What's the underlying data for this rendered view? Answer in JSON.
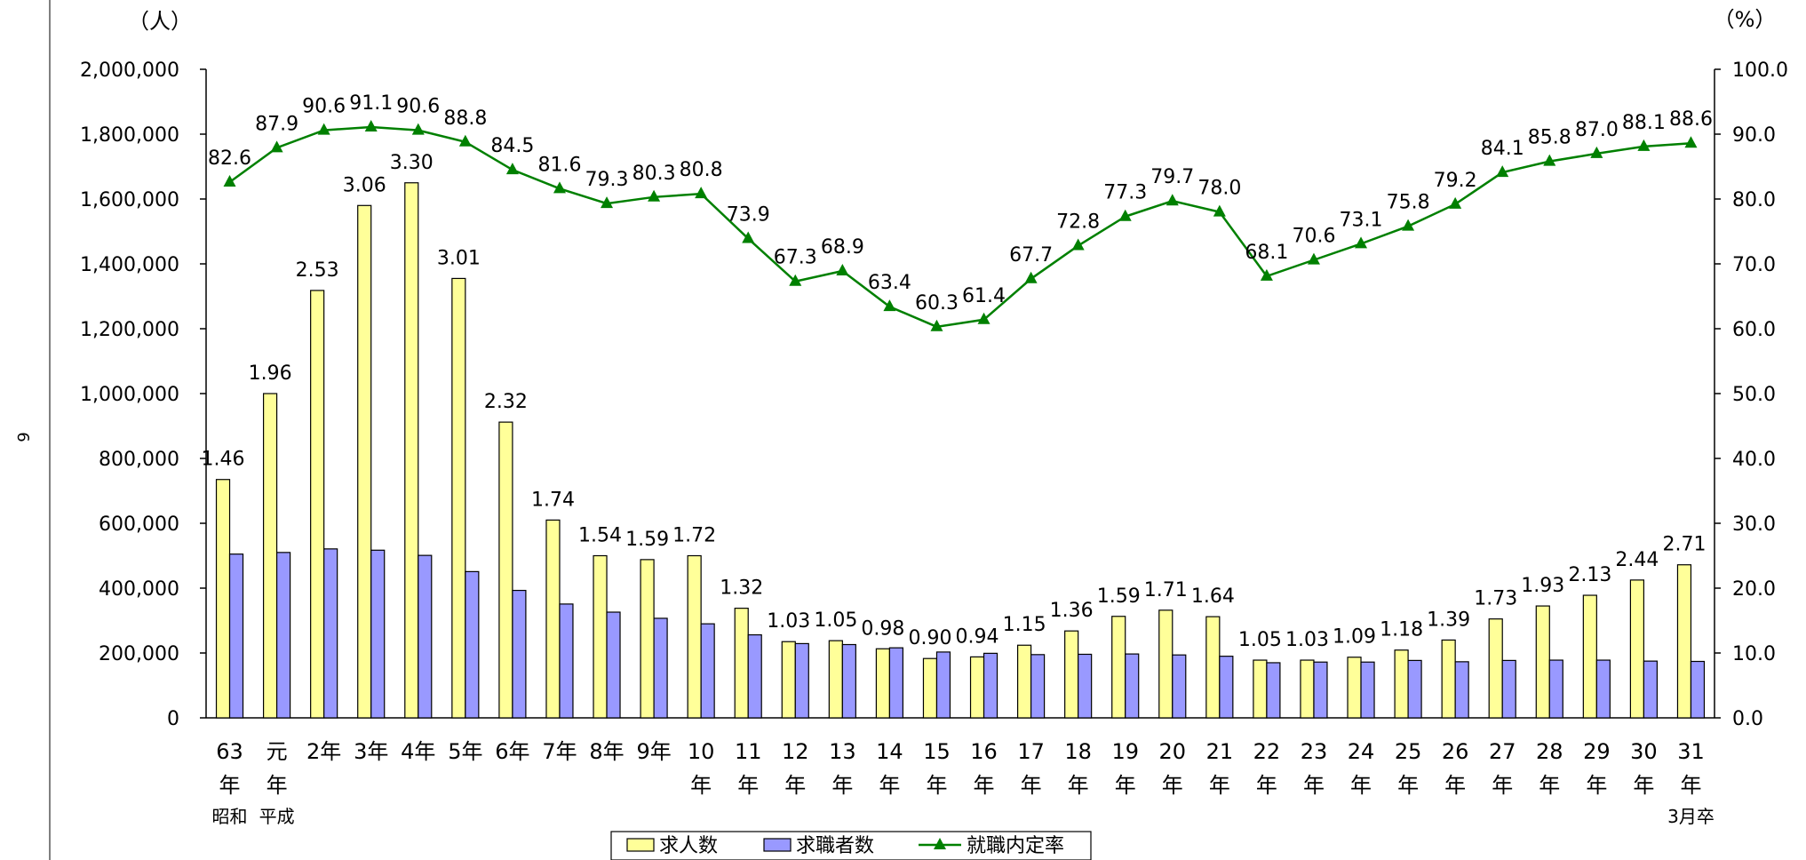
{
  "side_note": "6",
  "chart_data": {
    "type": "bar",
    "left_unit": "（人）",
    "right_unit": "（%）",
    "categories": [
      {
        "top": "63",
        "bottom": "年",
        "era": "昭和"
      },
      {
        "top": "元",
        "bottom": "年",
        "era": "平成"
      },
      {
        "top": "2年",
        "bottom": "",
        "era": ""
      },
      {
        "top": "3年",
        "bottom": "",
        "era": ""
      },
      {
        "top": "4年",
        "bottom": "",
        "era": ""
      },
      {
        "top": "5年",
        "bottom": "",
        "era": ""
      },
      {
        "top": "6年",
        "bottom": "",
        "era": ""
      },
      {
        "top": "7年",
        "bottom": "",
        "era": ""
      },
      {
        "top": "8年",
        "bottom": "",
        "era": ""
      },
      {
        "top": "9年",
        "bottom": "",
        "era": ""
      },
      {
        "top": "10",
        "bottom": "年",
        "era": ""
      },
      {
        "top": "11",
        "bottom": "年",
        "era": ""
      },
      {
        "top": "12",
        "bottom": "年",
        "era": ""
      },
      {
        "top": "13",
        "bottom": "年",
        "era": ""
      },
      {
        "top": "14",
        "bottom": "年",
        "era": ""
      },
      {
        "top": "15",
        "bottom": "年",
        "era": ""
      },
      {
        "top": "16",
        "bottom": "年",
        "era": ""
      },
      {
        "top": "17",
        "bottom": "年",
        "era": ""
      },
      {
        "top": "18",
        "bottom": "年",
        "era": ""
      },
      {
        "top": "19",
        "bottom": "年",
        "era": ""
      },
      {
        "top": "20",
        "bottom": "年",
        "era": ""
      },
      {
        "top": "21",
        "bottom": "年",
        "era": ""
      },
      {
        "top": "22",
        "bottom": "年",
        "era": ""
      },
      {
        "top": "23",
        "bottom": "年",
        "era": ""
      },
      {
        "top": "24",
        "bottom": "年",
        "era": ""
      },
      {
        "top": "25",
        "bottom": "年",
        "era": ""
      },
      {
        "top": "26",
        "bottom": "年",
        "era": ""
      },
      {
        "top": "27",
        "bottom": "年",
        "era": ""
      },
      {
        "top": "28",
        "bottom": "年",
        "era": ""
      },
      {
        "top": "29",
        "bottom": "年",
        "era": ""
      },
      {
        "top": "30",
        "bottom": "年",
        "era": ""
      },
      {
        "top": "31",
        "bottom": "年",
        "era": "3月卒"
      }
    ],
    "series": [
      {
        "name": "求人数",
        "kind": "bar",
        "axis": "left",
        "color": "#ffff99",
        "values": [
          735000,
          1000000,
          1318000,
          1580000,
          1650000,
          1355000,
          912000,
          610000,
          500000,
          488000,
          500000,
          338000,
          235000,
          238000,
          213000,
          183000,
          188000,
          224000,
          268000,
          313000,
          332000,
          312000,
          178000,
          178000,
          187000,
          209000,
          240000,
          305000,
          345000,
          378000,
          425000,
          472000
        ]
      },
      {
        "name": "求職者数",
        "kind": "bar",
        "axis": "left",
        "color": "#9999ff",
        "values": [
          505000,
          510000,
          521000,
          517000,
          501000,
          451000,
          393000,
          351000,
          326000,
          307000,
          290000,
          256000,
          229000,
          226000,
          216000,
          203000,
          199000,
          195000,
          196000,
          197000,
          194000,
          190000,
          170000,
          172000,
          172000,
          177000,
          173000,
          177000,
          178000,
          178000,
          175000,
          174000
        ]
      },
      {
        "name": "就職内定率",
        "kind": "line",
        "axis": "right",
        "color": "#008000",
        "values": [
          82.6,
          87.9,
          90.6,
          91.1,
          90.6,
          88.8,
          84.5,
          81.6,
          79.3,
          80.3,
          80.8,
          73.9,
          67.3,
          68.9,
          63.4,
          60.3,
          61.4,
          67.7,
          72.8,
          77.3,
          79.7,
          78.0,
          68.1,
          70.6,
          73.1,
          75.8,
          79.2,
          84.1,
          85.8,
          87.0,
          88.1,
          88.6
        ]
      }
    ],
    "ratio_labels": [
      "1.46",
      "1.96",
      "2.53",
      "3.06",
      "3.30",
      "3.01",
      "2.32",
      "1.74",
      "1.54",
      "1.59",
      "1.72",
      "1.32",
      "1.03",
      "1.05",
      "0.98",
      "0.90",
      "0.94",
      "1.15",
      "1.36",
      "1.59",
      "1.71",
      "1.64",
      "1.05",
      "1.03",
      "1.09",
      "1.18",
      "1.39",
      "1.73",
      "1.93",
      "2.13",
      "2.44",
      "2.71"
    ],
    "left_axis": {
      "min": 0,
      "max": 2000000,
      "ticks": [
        "0",
        "200,000",
        "400,000",
        "600,000",
        "800,000",
        "1,000,000",
        "1,200,000",
        "1,400,000",
        "1,600,000",
        "1,800,000",
        "2,000,000"
      ]
    },
    "right_axis": {
      "min": 0,
      "max": 100,
      "ticks": [
        "0.0",
        "10.0",
        "20.0",
        "30.0",
        "40.0",
        "50.0",
        "60.0",
        "70.0",
        "80.0",
        "90.0",
        "100.0"
      ]
    },
    "legend": {
      "placement": "bottom-center",
      "items": [
        "求人数",
        "求職者数",
        "就職内定率"
      ]
    },
    "grid": false
  }
}
